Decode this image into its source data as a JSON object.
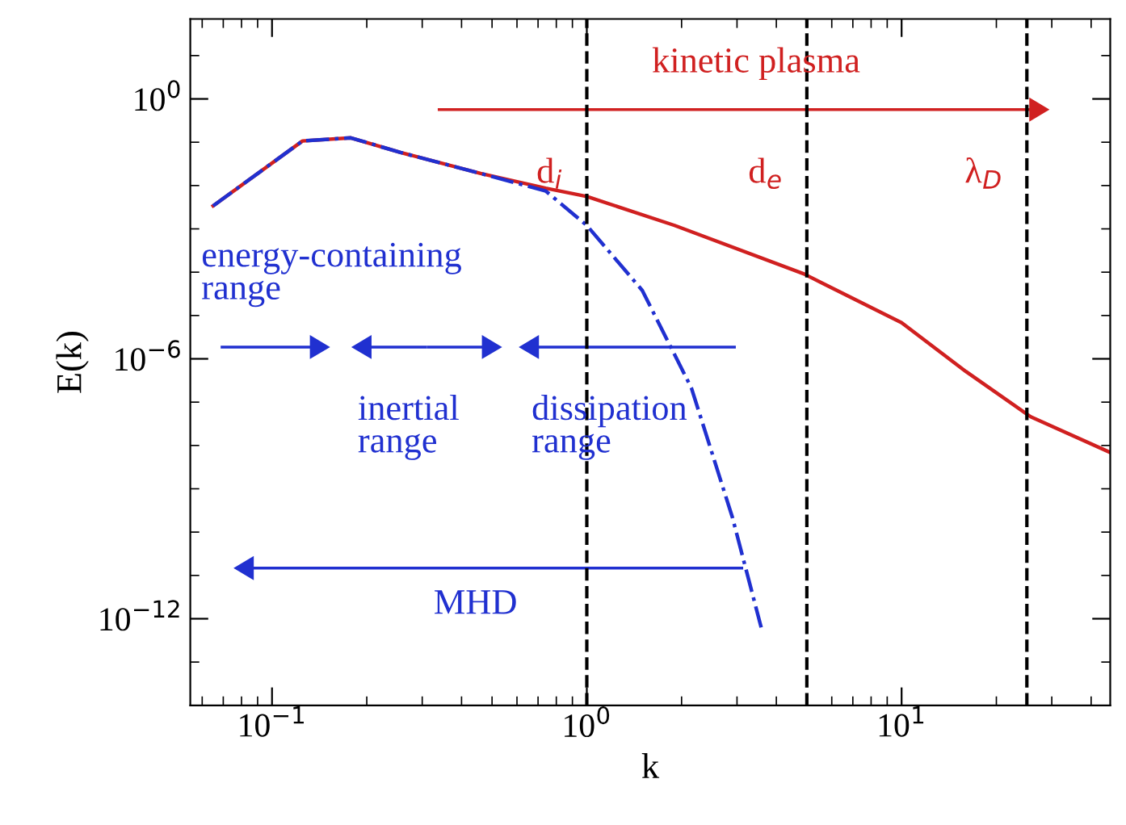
{
  "chart_data": {
    "type": "line",
    "xlabel": "k",
    "ylabel": "E(k)",
    "log": "xy",
    "xlim": [
      0.055,
      46
    ],
    "ylim": [
      1e-14,
      70
    ],
    "xticks": [
      {
        "value": 0.1,
        "label": "10$^{−1}$"
      },
      {
        "value": 1,
        "label": "10$^{0}$"
      },
      {
        "value": 10,
        "label": "10$^{1}$"
      }
    ],
    "yticks": [
      {
        "value": 1e-12,
        "label": "10$^{−12}$"
      },
      {
        "value": 1e-06,
        "label": "10$^{−6}$"
      },
      {
        "value": 1,
        "label": "10$^{0}$"
      }
    ],
    "grid": false,
    "series": [
      {
        "color": "#d02020",
        "line_style": "solid",
        "x": [
          0.065,
          0.125,
          0.178,
          0.256,
          0.46,
          0.74,
          1,
          1.9,
          4.9,
          10,
          16,
          25.7,
          46
        ],
        "values": [
          0.0034,
          0.107,
          0.126,
          0.058,
          0.019,
          0.0087,
          0.0056,
          0.0012,
          9.1e-05,
          6.8e-06,
          5.1e-07,
          4.6e-08,
          6.9e-09
        ]
      },
      {
        "color": "#2030d0",
        "line_style": "dashdot",
        "x": [
          0.065,
          0.125,
          0.178,
          0.256,
          0.46,
          0.74,
          1,
          1.5,
          2.15,
          2.9,
          3.58
        ],
        "values": [
          0.0034,
          0.107,
          0.126,
          0.058,
          0.019,
          0.0075,
          0.0012,
          3.8e-05,
          2.1e-07,
          2.2e-10,
          6.3e-13
        ]
      }
    ],
    "ref_lines": [
      {
        "axis": "x",
        "value": 1,
        "label": "d$_{i}$",
        "color": "#000000",
        "line_style": "dashed"
      },
      {
        "axis": "x",
        "value": 5,
        "label": "d$_{e}$",
        "color": "#000000",
        "line_style": "dashed"
      },
      {
        "axis": "x",
        "value": 25,
        "label": "λ$_{D}$",
        "color": "#000000",
        "line_style": "dashed"
      }
    ],
    "annotations": [
      "kinetic plasma",
      "energy-containing\nrange",
      "inertial\nrange",
      "dissipation\nrange",
      "MHD"
    ]
  }
}
